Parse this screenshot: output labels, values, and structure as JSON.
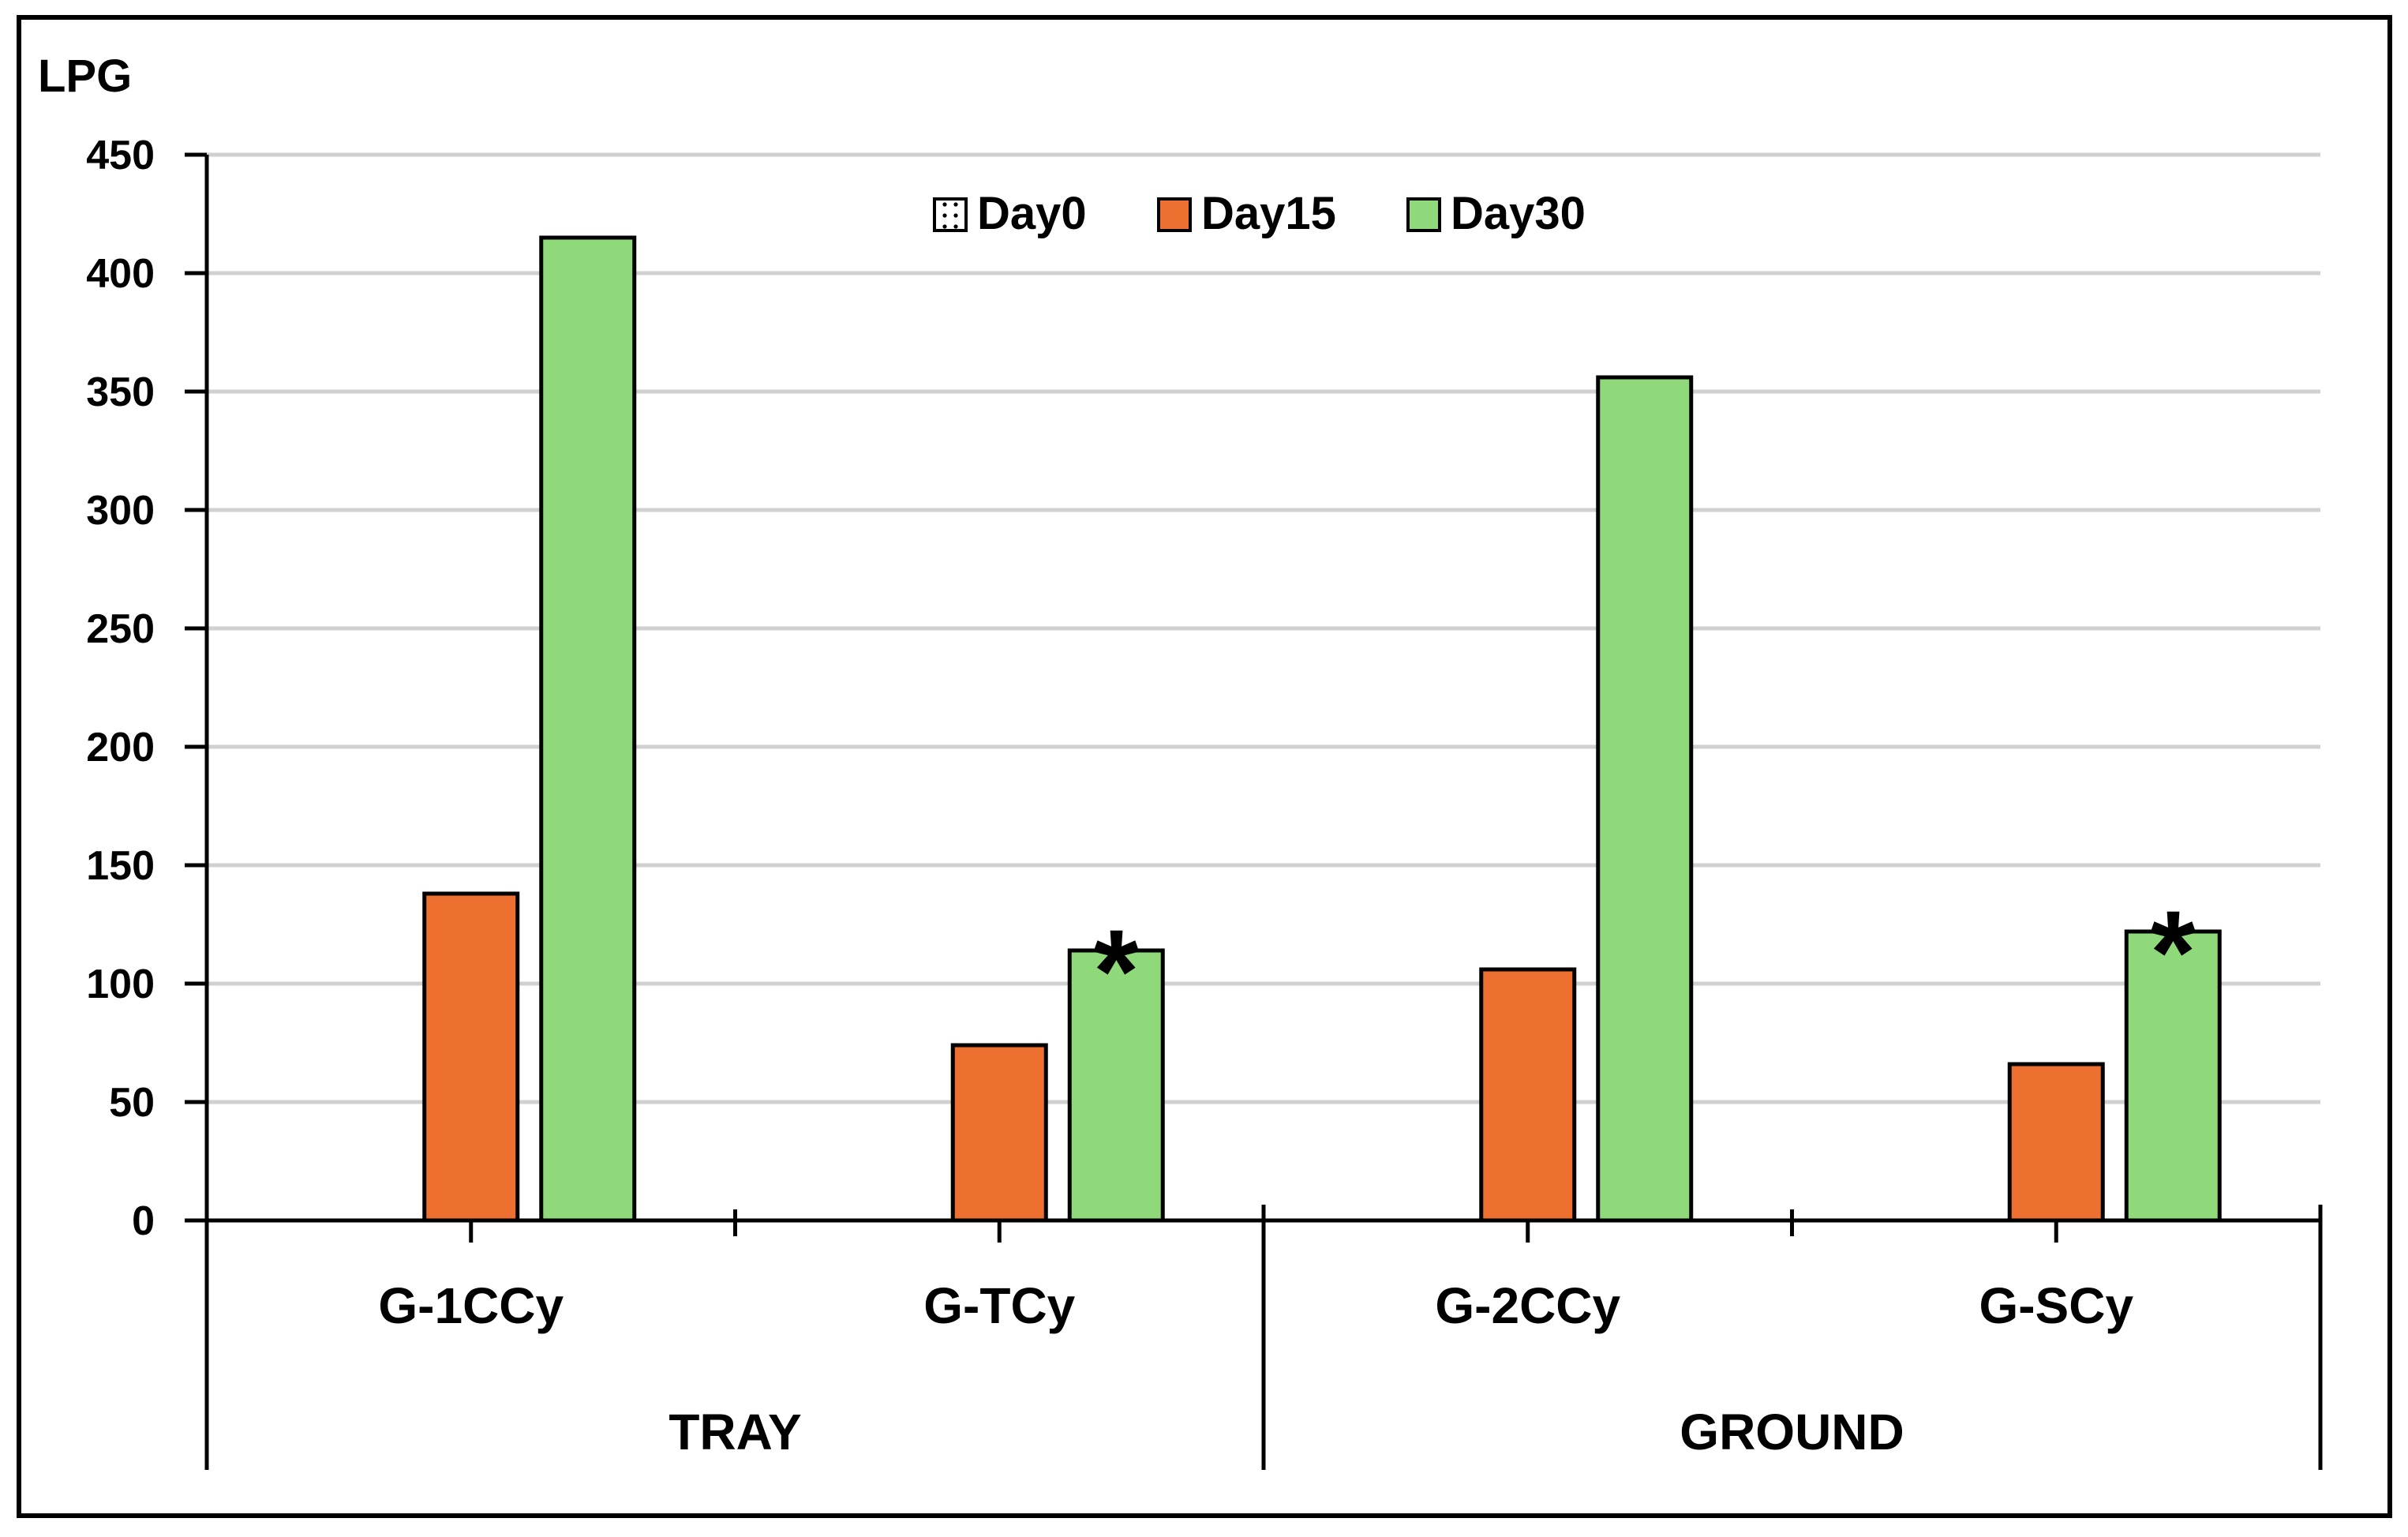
{
  "chart_data": {
    "type": "bar",
    "ylabel": "LPG",
    "ylim": [
      0,
      450
    ],
    "yticks": [
      0,
      50,
      100,
      150,
      200,
      250,
      300,
      350,
      400,
      450
    ],
    "grid": true,
    "legend_position": "top-center",
    "categories": [
      "G-1CCy",
      "G-TCy",
      "G-2CCy",
      "G-SCy"
    ],
    "groups": [
      {
        "label": "TRAY",
        "categories": [
          "G-1CCy",
          "G-TCy"
        ]
      },
      {
        "label": "GROUND",
        "categories": [
          "G-2CCy",
          "G-SCy"
        ]
      }
    ],
    "series": [
      {
        "name": "Day0",
        "values": [
          0,
          0,
          0,
          0
        ],
        "color": "#ffffff",
        "pattern": "dotted"
      },
      {
        "name": "Day15",
        "values": [
          138,
          74,
          106,
          66
        ],
        "color": "#ED7030"
      },
      {
        "name": "Day30",
        "values": [
          415,
          114,
          356,
          122
        ],
        "color": "#8FD97A"
      }
    ],
    "annotations": [
      {
        "text": "*",
        "category": "G-TCy",
        "series": "Day30"
      },
      {
        "text": "*",
        "category": "G-SCy",
        "series": "Day30"
      }
    ]
  }
}
